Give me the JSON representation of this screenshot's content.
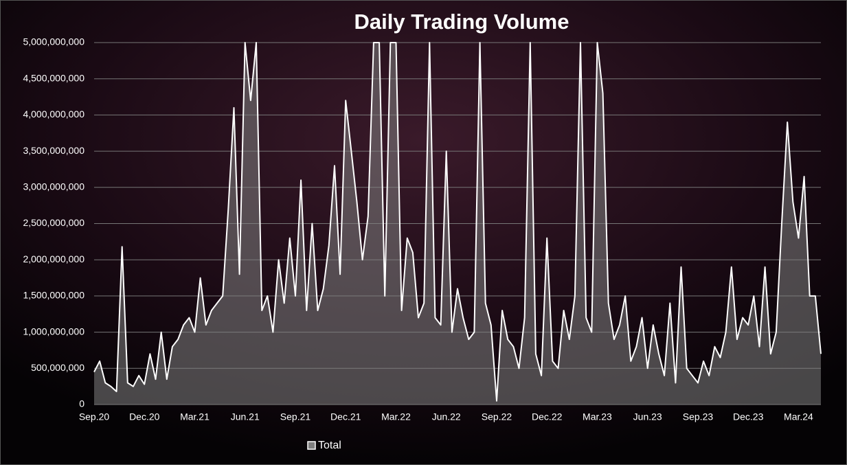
{
  "chart_data": {
    "type": "area-line",
    "title": "Daily Trading Volume",
    "categories": [
      "Sep.20",
      null,
      null,
      null,
      null,
      null,
      null,
      null,
      null,
      "Dec.20",
      null,
      null,
      null,
      null,
      null,
      null,
      null,
      null,
      "Mar.21",
      null,
      null,
      null,
      null,
      null,
      null,
      null,
      null,
      "Jun.21",
      null,
      null,
      null,
      null,
      null,
      null,
      null,
      null,
      "Sep.21",
      null,
      null,
      null,
      null,
      null,
      null,
      null,
      null,
      "Dec.21",
      null,
      null,
      null,
      null,
      null,
      null,
      null,
      null,
      "Mar.22",
      null,
      null,
      null,
      null,
      null,
      null,
      null,
      null,
      "Jun.22",
      null,
      null,
      null,
      null,
      null,
      null,
      null,
      null,
      "Sep.22",
      null,
      null,
      null,
      null,
      null,
      null,
      null,
      null,
      "Dec.22",
      null,
      null,
      null,
      null,
      null,
      null,
      null,
      null,
      "Mar.23",
      null,
      null,
      null,
      null,
      null,
      null,
      null,
      null,
      "Jun.23",
      null,
      null,
      null,
      null,
      null,
      null,
      null,
      null,
      "Sep.23",
      null,
      null,
      null,
      null,
      null,
      null,
      null,
      null,
      "Dec.23",
      null,
      null,
      null,
      null,
      null,
      null,
      null,
      null,
      "Mar.24",
      null,
      null,
      null,
      null
    ],
    "series": [
      {
        "name": "Total",
        "color": "#ffffff",
        "fill": "#7f7f7f",
        "values": [
          450000000,
          600000000,
          300000000,
          250000000,
          180000000,
          2180000000,
          300000000,
          250000000,
          400000000,
          280000000,
          700000000,
          350000000,
          1000000000,
          350000000,
          800000000,
          900000000,
          1100000000,
          1200000000,
          1000000000,
          1750000000,
          1100000000,
          1300000000,
          1400000000,
          1500000000,
          2700000000,
          4100000000,
          1800000000,
          5000000000,
          4200000000,
          5000000000,
          1300000000,
          1500000000,
          1000000000,
          2000000000,
          1400000000,
          2300000000,
          1500000000,
          3100000000,
          1300000000,
          2500000000,
          1300000000,
          1600000000,
          2200000000,
          3300000000,
          1800000000,
          4200000000,
          3500000000,
          2800000000,
          2000000000,
          2600000000,
          5000000000,
          5000000000,
          1500000000,
          5000000000,
          5000000000,
          1300000000,
          2300000000,
          2100000000,
          1200000000,
          1400000000,
          5000000000,
          1200000000,
          1100000000,
          3500000000,
          1000000000,
          1600000000,
          1200000000,
          900000000,
          1000000000,
          5000000000,
          1400000000,
          1100000000,
          50000000,
          1300000000,
          900000000,
          800000000,
          500000000,
          1200000000,
          5000000000,
          700000000,
          400000000,
          2300000000,
          600000000,
          500000000,
          1300000000,
          900000000,
          1500000000,
          5000000000,
          1200000000,
          1000000000,
          5000000000,
          4300000000,
          1400000000,
          900000000,
          1100000000,
          1500000000,
          600000000,
          800000000,
          1200000000,
          500000000,
          1100000000,
          700000000,
          400000000,
          1400000000,
          300000000,
          1900000000,
          500000000,
          400000000,
          300000000,
          600000000,
          400000000,
          800000000,
          650000000,
          1000000000,
          1900000000,
          900000000,
          1200000000,
          1100000000,
          1500000000,
          800000000,
          1900000000,
          700000000,
          1000000000,
          2500000000,
          3900000000,
          2800000000,
          2300000000,
          3150000000,
          1500000000,
          1500000000,
          700000000
        ]
      }
    ],
    "ylim": [
      0,
      5000000000
    ],
    "yticks": [
      0,
      {
        "value": 500000000,
        "label": "500,000,000"
      },
      {
        "value": 1000000000,
        "label": "1,000,000,000"
      },
      {
        "value": 1500000000,
        "label": "1,500,000,000"
      },
      {
        "value": 2000000000,
        "label": "2,000,000,000"
      },
      {
        "value": 2500000000,
        "label": "2,500,000,000"
      },
      {
        "value": 3000000000,
        "label": "3,000,000,000"
      },
      {
        "value": 3500000000,
        "label": "3,500,000,000"
      },
      {
        "value": 4000000000,
        "label": "4,000,000,000"
      },
      {
        "value": 4500000000,
        "label": "4,500,000,000"
      },
      {
        "value": 5000000000,
        "label": "5,000,000,000"
      }
    ],
    "grid": true,
    "legend": "bottom"
  }
}
